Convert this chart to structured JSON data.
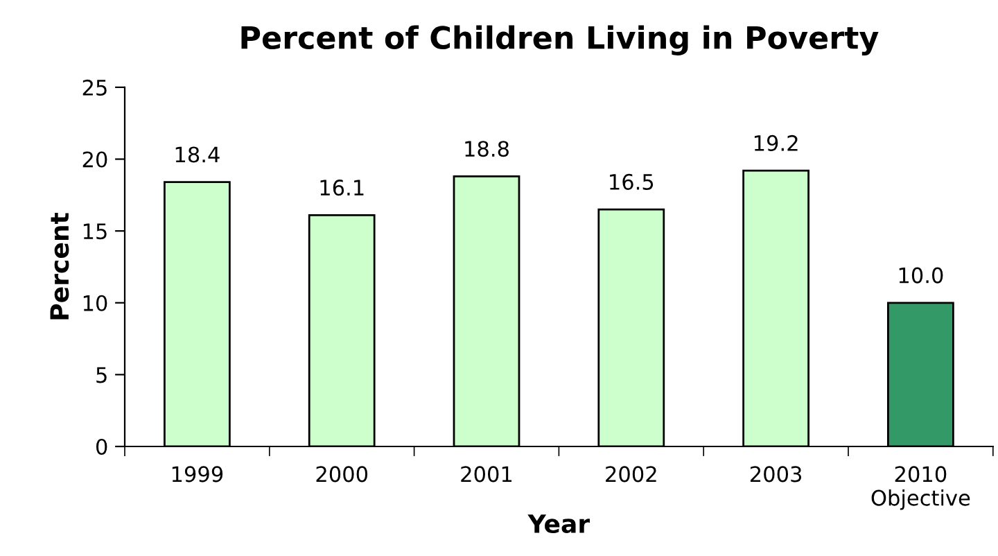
{
  "chart_data": {
    "type": "bar",
    "title": "Percent of Children Living in Poverty",
    "xlabel": "Year",
    "ylabel": "Percent",
    "categories": [
      "1999",
      "2000",
      "2001",
      "2002",
      "2003",
      "2010\nObjective"
    ],
    "values": [
      18.4,
      16.1,
      18.8,
      16.5,
      19.2,
      10.0
    ],
    "colors": [
      "#ccffcc",
      "#ccffcc",
      "#ccffcc",
      "#ccffcc",
      "#ccffcc",
      "#339966"
    ],
    "value_labels": [
      "18.4",
      "16.1",
      "18.8",
      "16.5",
      "19.2",
      "10.0"
    ],
    "ylim": [
      0,
      25
    ],
    "yticks": [
      0,
      5,
      10,
      15,
      20,
      25
    ],
    "grid": false,
    "legend": false
  }
}
